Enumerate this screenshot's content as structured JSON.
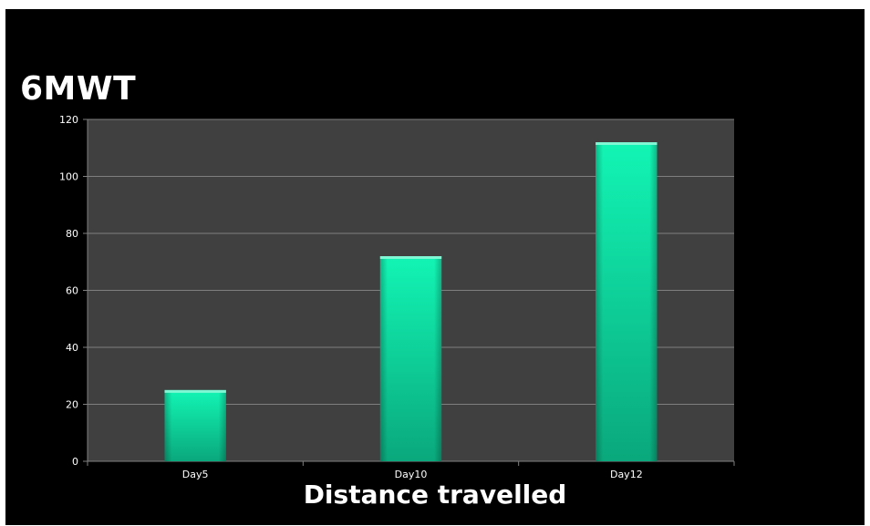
{
  "colors": {
    "background": "#000000",
    "plot_area": "#404040",
    "gridline": "#7f7f7f",
    "bar_top": "#12f5b4",
    "bar_bottom": "#0aa87c",
    "text": "#ffffff"
  },
  "chart_data": {
    "type": "bar",
    "title": "6MWT",
    "xlabel": "Distance travelled",
    "ylabel": "",
    "categories": [
      "Day5",
      "Day10",
      "Day12"
    ],
    "values": [
      25,
      72,
      112
    ],
    "ylim": [
      0,
      120
    ],
    "yticks": [
      0,
      20,
      40,
      60,
      80,
      100,
      120
    ],
    "grid": true,
    "legend": "none"
  }
}
